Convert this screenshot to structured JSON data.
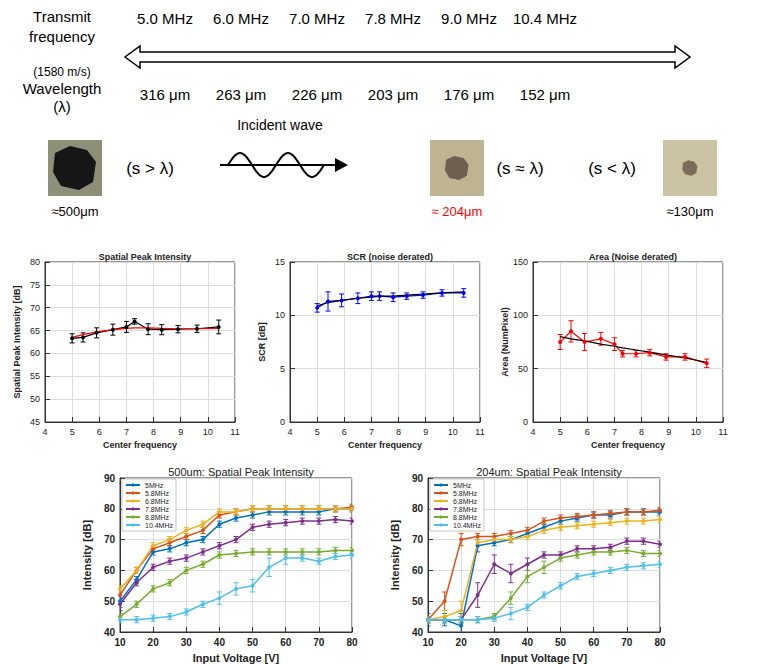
{
  "header": {
    "row_label": "Transmit frequency",
    "speed": "(1580 m/s)",
    "wavelength_label": "Wavelength",
    "wavelength_symbol": "(λ)",
    "frequencies": [
      "5.0 MHz",
      "6.0 MHz",
      "7.0 MHz",
      "7.8 MHz",
      "9.0 MHz",
      "10.4 MHz"
    ],
    "wavelengths": [
      "316 μm",
      "263 μm",
      "226 μm",
      "203 μm",
      "176 μm",
      "152 μm"
    ],
    "wave_label": "Incident wave",
    "particles": [
      {
        "relation": "(s > λ)",
        "size": "≈500μm",
        "color": "#000000"
      },
      {
        "relation": "(s ≈ λ)",
        "size": "≈ 204μm",
        "color": "#ff0000"
      },
      {
        "relation": "(s < λ)",
        "size": "≈130μm",
        "color": "#000000"
      }
    ]
  },
  "chart_data": [
    {
      "type": "line",
      "title": "Spatial Peak Intensity",
      "x_label": "Center frequency",
      "y_label": "Spatial Peak Intensity [dB]",
      "xlim": [
        4,
        11
      ],
      "xticks": [
        4,
        5,
        6,
        7,
        8,
        9,
        10,
        11
      ],
      "ylim": [
        45,
        80
      ],
      "yticks": [
        45,
        50,
        55,
        60,
        65,
        70,
        75,
        80
      ],
      "grid": true,
      "x": [
        5,
        5.4,
        5.9,
        6.5,
        7.0,
        7.3,
        7.8,
        8.3,
        8.9,
        9.6,
        10.4
      ],
      "series": [
        {
          "color": "#000000",
          "marker": "circle",
          "line_style": "solid",
          "values": [
            63.3,
            63.5,
            64.5,
            65.2,
            65.8,
            67,
            65.3,
            65.2,
            65.3,
            65.4,
            65.8
          ],
          "errors": [
            1,
            1,
            1.1,
            1.2,
            1.2,
            0.6,
            1.2,
            1.1,
            0.8,
            0.8,
            1.5
          ]
        },
        {
          "color": "#ff0000",
          "marker": "none",
          "line_style": "solid",
          "values": [
            63.5,
            64.1,
            64.7,
            65.2,
            65.5,
            65.6,
            65.6,
            65.5,
            65.4,
            65.4,
            65.5
          ]
        }
      ]
    },
    {
      "type": "line",
      "title": "SCR (noise derated)",
      "x_label": "Center frequency",
      "y_label": "SCR [dB]",
      "xlim": [
        4,
        11
      ],
      "xticks": [
        4,
        5,
        6,
        7,
        8,
        9,
        10,
        11
      ],
      "ylim": [
        0,
        15
      ],
      "yticks": [
        0,
        5,
        10,
        15
      ],
      "grid": true,
      "x": [
        5,
        5.4,
        5.9,
        6.5,
        7.0,
        7.3,
        7.8,
        8.3,
        8.9,
        9.6,
        10.4
      ],
      "series": [
        {
          "color": "#0000ff",
          "marker": "circle",
          "line_style": "solid",
          "values": [
            10.7,
            11.3,
            11.4,
            11.6,
            11.8,
            11.8,
            11.7,
            11.8,
            11.9,
            12.1,
            12.1
          ],
          "errors": [
            0.4,
            0.9,
            0.6,
            0.5,
            0.4,
            0.4,
            0.4,
            0.3,
            0.3,
            0.3,
            0.4
          ]
        },
        {
          "color": "#000000",
          "marker": "none",
          "line_style": "solid",
          "values": [
            10.9,
            11.2,
            11.4,
            11.6,
            11.7,
            11.8,
            11.8,
            11.9,
            12.0,
            12.1,
            12.2
          ]
        }
      ]
    },
    {
      "type": "line",
      "title": "Area (Noise derated)",
      "x_label": "Center frequency",
      "y_label": "Area (NumPixel)",
      "xlim": [
        4,
        11
      ],
      "xticks": [
        4,
        5,
        6,
        7,
        8,
        9,
        10,
        11
      ],
      "ylim": [
        0,
        150
      ],
      "yticks": [
        0,
        50,
        100,
        150
      ],
      "grid": true,
      "x": [
        5,
        5.4,
        5.9,
        6.5,
        7.0,
        7.3,
        7.8,
        8.3,
        8.9,
        9.6,
        10.4
      ],
      "series": [
        {
          "color": "#ff0000",
          "marker": "circle",
          "line_style": "solid",
          "values": [
            75,
            85,
            75,
            78,
            73,
            64,
            64,
            65,
            61,
            61,
            55
          ],
          "errors": [
            7,
            10,
            8,
            6,
            6,
            3,
            3,
            3,
            3,
            3,
            4
          ]
        },
        {
          "color": "#000000",
          "marker": "none",
          "line_style": "solid",
          "values": [
            80,
            78,
            76,
            73,
            71,
            69.5,
            67.5,
            65.5,
            63,
            60,
            56
          ]
        }
      ]
    },
    {
      "type": "line",
      "title": "500um: Spatial Peak Intensity",
      "x_label": "Input Voltage [V]",
      "y_label": "Intensity [dB]",
      "xlim": [
        10,
        80
      ],
      "xticks": [
        10,
        20,
        30,
        40,
        50,
        60,
        70,
        80
      ],
      "ylim": [
        40,
        90
      ],
      "yticks": [
        40,
        50,
        60,
        70,
        80,
        90
      ],
      "grid": true,
      "legend": "upper left",
      "x": [
        10,
        15,
        20,
        25,
        30,
        35,
        40,
        45,
        50,
        55,
        60,
        65,
        70,
        75,
        80
      ],
      "series": [
        {
          "name": "5MHz",
          "color": "#0072bd",
          "marker": "circle",
          "values": [
            50,
            57,
            66,
            67,
            69,
            70,
            75,
            77,
            78,
            79,
            79,
            79,
            79,
            80,
            80
          ],
          "errors": [
            2,
            1,
            1,
            1,
            1,
            1,
            1,
            1,
            1,
            1,
            1,
            1,
            1,
            1,
            1
          ]
        },
        {
          "name": "5.8MHz",
          "color": "#d95319",
          "marker": "circle",
          "values": [
            52,
            60,
            67,
            69,
            71,
            73,
            78,
            79,
            80,
            80,
            80,
            80,
            80,
            80,
            80.5
          ],
          "errors": [
            1,
            1,
            1,
            1,
            1,
            1,
            1,
            1,
            1,
            1,
            1,
            1,
            1,
            1,
            1
          ]
        },
        {
          "name": "6.8MHz",
          "color": "#edb120",
          "marker": "circle",
          "values": [
            54,
            60,
            68,
            70,
            73,
            75,
            79,
            79,
            80,
            80,
            80,
            80,
            80,
            80,
            80
          ],
          "errors": [
            1,
            1,
            1,
            1,
            1,
            1,
            1,
            1,
            1,
            1,
            1,
            1,
            1,
            1,
            1
          ]
        },
        {
          "name": "7.8MHz",
          "color": "#7e2f8e",
          "marker": "circle",
          "values": [
            49,
            56,
            61,
            63,
            64,
            66,
            68,
            70,
            74,
            75,
            75.5,
            76,
            76,
            76.5,
            76
          ],
          "errors": [
            2,
            1,
            1,
            1,
            1,
            1,
            1,
            1,
            1,
            1,
            1,
            1,
            1,
            1,
            1
          ]
        },
        {
          "name": "8.8MHz",
          "color": "#77ac30",
          "marker": "circle",
          "values": [
            45,
            49,
            54,
            56,
            60,
            62,
            65,
            65.5,
            66,
            66,
            66,
            66,
            66,
            66.5,
            66.5
          ],
          "errors": [
            1,
            1,
            1,
            1,
            1,
            1,
            1,
            1,
            1,
            1,
            1,
            1,
            1,
            1,
            1
          ]
        },
        {
          "name": "10.4MHz",
          "color": "#4dbeee",
          "marker": "circle",
          "values": [
            44,
            44,
            44.5,
            45,
            46.5,
            49,
            51,
            54,
            55,
            61,
            64,
            64,
            63,
            64.5,
            65
          ],
          "errors": [
            1,
            1,
            1,
            1,
            1,
            1,
            2,
            2,
            2,
            3,
            2,
            1,
            1,
            1,
            1
          ]
        }
      ]
    },
    {
      "type": "line",
      "title": "204um: Spatial Peak Intensity",
      "x_label": "Input Voltage [V]",
      "y_label": "Intensity [dB]",
      "xlim": [
        10,
        80
      ],
      "xticks": [
        10,
        20,
        30,
        40,
        50,
        60,
        70,
        80
      ],
      "ylim": [
        40,
        90
      ],
      "yticks": [
        40,
        50,
        60,
        70,
        80,
        90
      ],
      "grid": true,
      "legend": "upper left",
      "x": [
        10,
        15,
        20,
        25,
        30,
        35,
        40,
        45,
        50,
        55,
        60,
        65,
        70,
        75,
        80
      ],
      "series": [
        {
          "name": "5MHz",
          "color": "#0072bd",
          "marker": "circle",
          "values": [
            44,
            44,
            42,
            68,
            69,
            70,
            72,
            74,
            76,
            77,
            78,
            78,
            79,
            79,
            79
          ],
          "errors": [
            2,
            2,
            4,
            2,
            1,
            1,
            1,
            1,
            1,
            1,
            1,
            1,
            1,
            1,
            1
          ]
        },
        {
          "name": "5.8MHz",
          "color": "#d95319",
          "marker": "circle",
          "values": [
            44,
            50,
            70,
            71,
            71,
            72,
            73,
            76,
            77,
            77.5,
            78,
            78.5,
            79,
            79,
            79.5
          ],
          "errors": [
            1,
            3,
            2,
            1,
            1,
            1,
            1,
            1,
            1,
            1,
            1,
            1,
            1,
            1,
            1
          ]
        },
        {
          "name": "6.8MHz",
          "color": "#edb120",
          "marker": "circle",
          "values": [
            44,
            45,
            47,
            69,
            70,
            70,
            71,
            73,
            74,
            74.5,
            75,
            75.5,
            76,
            76,
            76.5
          ],
          "errors": [
            1,
            2,
            3,
            1,
            1,
            1,
            1,
            1,
            1,
            1,
            1,
            1,
            1,
            1,
            1
          ]
        },
        {
          "name": "7.8MHz",
          "color": "#7e2f8e",
          "marker": "circle",
          "values": [
            44,
            44,
            44,
            52,
            62,
            59,
            62,
            65,
            65,
            67,
            67,
            67.5,
            69.5,
            69.5,
            68.5
          ],
          "errors": [
            1,
            1,
            1,
            4,
            3,
            3,
            2,
            1,
            1,
            1,
            1,
            1,
            1,
            1,
            1
          ]
        },
        {
          "name": "8.8MHz",
          "color": "#77ac30",
          "marker": "circle",
          "values": [
            44,
            44,
            44,
            44,
            45,
            51,
            58,
            61,
            64,
            65,
            66,
            66,
            66.5,
            65.5,
            65.5
          ],
          "errors": [
            1,
            1,
            1,
            1,
            1,
            2,
            2,
            2,
            1,
            1,
            1,
            1,
            1,
            1,
            1
          ]
        },
        {
          "name": "10.4MHz",
          "color": "#4dbeee",
          "marker": "circle",
          "values": [
            44,
            44,
            44,
            44,
            44.5,
            46,
            48,
            52,
            55,
            58,
            59,
            60,
            61,
            61.5,
            62
          ],
          "errors": [
            1,
            1,
            1,
            1,
            1,
            2,
            1,
            1,
            1,
            1,
            1,
            1,
            1,
            1,
            1
          ]
        }
      ]
    }
  ]
}
